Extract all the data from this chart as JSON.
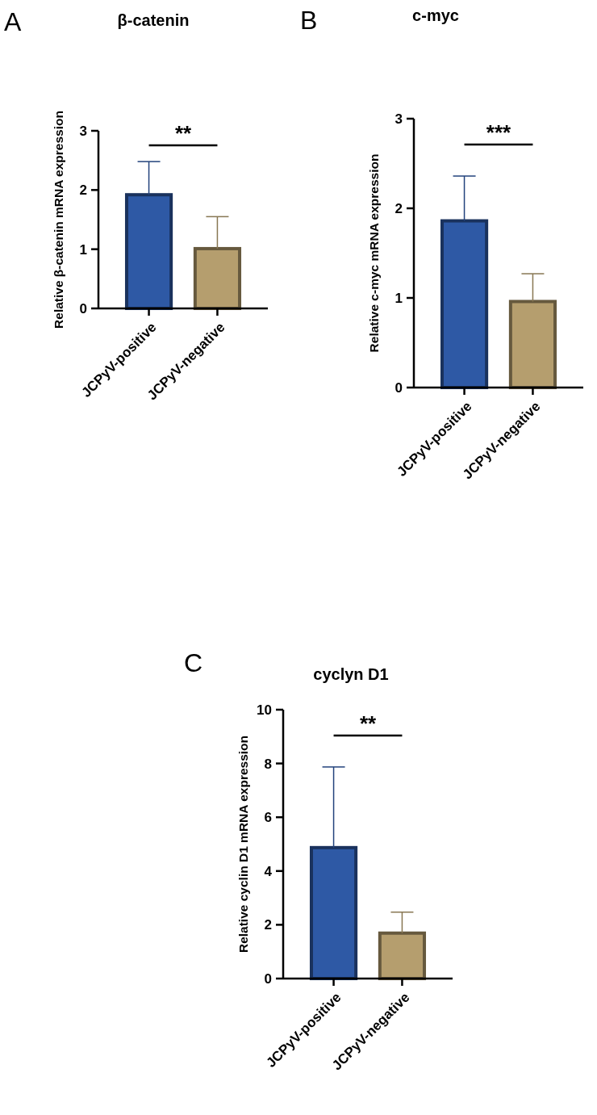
{
  "chart_data": [
    {
      "type": "bar",
      "title": "β-catenin",
      "ylabel": "Relative β-catenin mRNA expression",
      "categories": [
        "JCPyV-positive",
        "JCPyV-negative"
      ],
      "values": [
        1.92,
        1.01
      ],
      "colors": [
        "#2e59a5",
        "#b59e6e"
      ],
      "errors": [
        [
          1.92,
          2.48
        ],
        [
          1.01,
          1.55
        ]
      ],
      "ylim": [
        0,
        3
      ],
      "yticks": [
        0,
        1,
        2,
        3
      ],
      "grid": false,
      "annotations": [
        "A",
        "**"
      ]
    },
    {
      "type": "bar",
      "title": "c-myc",
      "ylabel": "Relative c-myc mRNA expression",
      "categories": [
        "JCPyV-positive",
        "JCPyV-negative"
      ],
      "values": [
        1.86,
        0.96
      ],
      "colors": [
        "#2e59a5",
        "#b59e6e"
      ],
      "errors": [
        [
          1.86,
          2.36
        ],
        [
          0.96,
          1.27
        ]
      ],
      "ylim": [
        0,
        3
      ],
      "yticks": [
        0,
        1,
        2,
        3
      ],
      "grid": false,
      "annotations": [
        "B",
        "***"
      ]
    },
    {
      "type": "bar",
      "title": "cyclyn D1",
      "ylabel": "Relative cyclin D1 mRNA expression",
      "categories": [
        "JCPyV-positive",
        "JCPyV-negative"
      ],
      "values": [
        4.87,
        1.69
      ],
      "colors": [
        "#2e59a5",
        "#b59e6e"
      ],
      "errors": [
        [
          4.87,
          7.87
        ],
        [
          1.69,
          2.47
        ]
      ],
      "ylim": [
        0,
        10
      ],
      "yticks": [
        0,
        2,
        4,
        6,
        8,
        10
      ],
      "grid": false,
      "annotations": [
        "C",
        "**"
      ]
    }
  ]
}
